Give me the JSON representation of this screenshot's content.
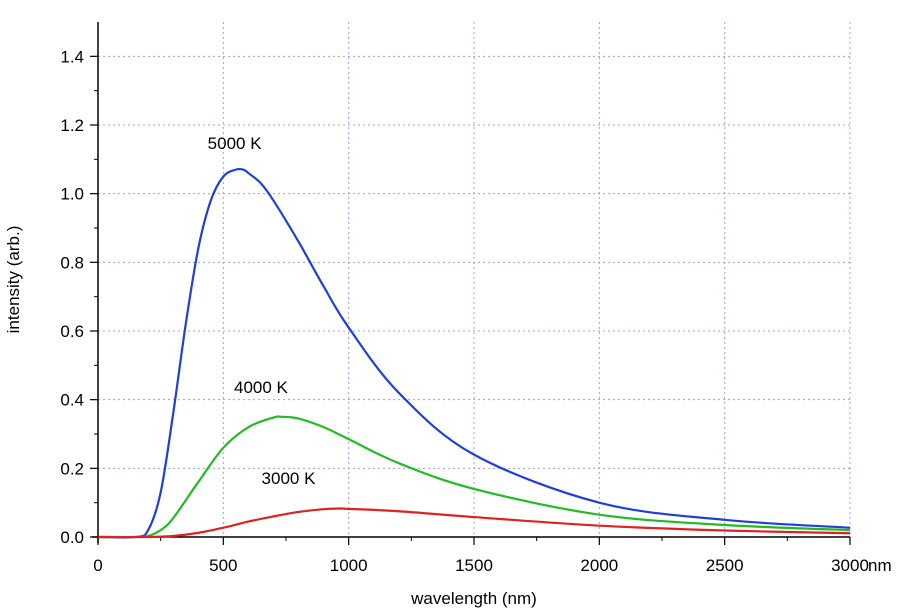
{
  "chart_data": {
    "type": "line",
    "xlabel": "wavelength (nm)",
    "ylabel": "intensity (arb.)",
    "x_unit_label": "nm",
    "xlim": [
      0,
      3000
    ],
    "ylim": [
      0,
      1.5
    ],
    "x_ticks": [
      0,
      500,
      1000,
      1500,
      2000,
      2500,
      3000
    ],
    "x_tick_labels": [
      "0",
      "500",
      "1000",
      "1500",
      "2000",
      "2500",
      "3000"
    ],
    "y_ticks": [
      0.0,
      0.2,
      0.4,
      0.6,
      0.8,
      1.0,
      1.2,
      1.4
    ],
    "y_tick_labels": [
      "0.0",
      "0.2",
      "0.4",
      "0.6",
      "0.8",
      "1.0",
      "1.2",
      "1.4"
    ],
    "grid": true,
    "grid_color": "#9c9cf0",
    "series": [
      {
        "name": "5000 K",
        "color": "#1f3fd6",
        "x": [
          0,
          150,
          200,
          250,
          300,
          350,
          400,
          450,
          500,
          550,
          580,
          600,
          650,
          700,
          800,
          900,
          1000,
          1200,
          1500,
          2000,
          2500,
          3000
        ],
        "y": [
          0.0,
          0.0,
          0.02,
          0.13,
          0.36,
          0.62,
          0.84,
          0.98,
          1.05,
          1.07,
          1.07,
          1.06,
          1.03,
          0.98,
          0.86,
          0.73,
          0.61,
          0.42,
          0.24,
          0.1,
          0.05,
          0.027
        ]
      },
      {
        "name": "4000 K",
        "color": "#22bb22",
        "x": [
          0,
          150,
          200,
          250,
          300,
          400,
          500,
          600,
          700,
          730,
          800,
          900,
          1000,
          1200,
          1500,
          2000,
          2500,
          3000
        ],
        "y": [
          0.0,
          0.0,
          0.003,
          0.02,
          0.055,
          0.16,
          0.26,
          0.32,
          0.348,
          0.35,
          0.345,
          0.32,
          0.285,
          0.215,
          0.14,
          0.065,
          0.035,
          0.02
        ]
      },
      {
        "name": "3000 K",
        "color": "#dd2222",
        "x": [
          0,
          200,
          300,
          400,
          500,
          600,
          700,
          800,
          900,
          970,
          1000,
          1200,
          1500,
          2000,
          2500,
          3000
        ],
        "y": [
          0.0,
          0.0,
          0.003,
          0.012,
          0.027,
          0.045,
          0.06,
          0.073,
          0.081,
          0.083,
          0.082,
          0.075,
          0.058,
          0.033,
          0.019,
          0.011
        ]
      }
    ]
  }
}
